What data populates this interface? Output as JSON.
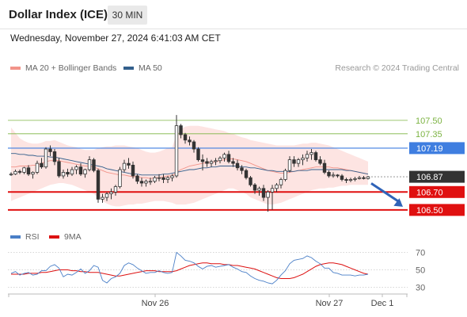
{
  "header": {
    "title": "Dollar Index (ICE)",
    "timeframe_label": "30 MIN"
  },
  "datetime": "Wednesday, November 27, 2024 6:41:03 AM CET",
  "legend": {
    "items": [
      {
        "label": "MA 20 + Bollinger Bands",
        "color": "#f2948a"
      },
      {
        "label": "MA 50",
        "color": "#335f8c"
      }
    ],
    "credit": "Research © 2024 Trading Central"
  },
  "rsi_legend": {
    "items": [
      {
        "label": "RSI",
        "color": "#4a7fc7"
      },
      {
        "label": "9MA",
        "color": "#dd1111"
      }
    ]
  },
  "colors": {
    "pivot": "#3f7ee0",
    "support": "#e01010",
    "resistance": "#7cb342",
    "bollinger_fill": "#fde4e2",
    "candles": "#333333",
    "last_price_bg": "#333333"
  },
  "chart_data": [
    {
      "type": "candlestick",
      "ylim": [
        106.34,
        107.72
      ],
      "x_ticks": [
        "Nov 26",
        "Nov 27",
        "Dec 1"
      ],
      "levels": [
        {
          "value": 107.5,
          "label": "107.50",
          "kind": "resistance"
        },
        {
          "value": 107.35,
          "label": "107.35",
          "kind": "resistance"
        },
        {
          "value": 107.19,
          "label": "107.19",
          "kind": "pivot"
        },
        {
          "value": 106.87,
          "label": "106.87",
          "kind": "last"
        },
        {
          "value": 106.7,
          "label": "106.70",
          "kind": "support"
        },
        {
          "value": 106.5,
          "label": "106.50",
          "kind": "support"
        }
      ],
      "forecast": {
        "from": 106.85,
        "to": 106.5,
        "direction": "down"
      },
      "candles": [
        [
          106.9,
          106.92,
          106.88,
          106.9
        ],
        [
          106.9,
          106.95,
          106.89,
          106.93
        ],
        [
          106.93,
          106.95,
          106.9,
          106.92
        ],
        [
          106.92,
          106.98,
          106.9,
          106.97
        ],
        [
          106.97,
          107.0,
          106.88,
          106.9
        ],
        [
          106.9,
          106.93,
          106.85,
          106.92
        ],
        [
          106.92,
          107.05,
          106.9,
          107.02
        ],
        [
          107.02,
          107.08,
          106.96,
          106.98
        ],
        [
          106.98,
          107.2,
          106.96,
          107.18
        ],
        [
          107.18,
          107.22,
          107.1,
          107.15
        ],
        [
          107.15,
          107.18,
          107.0,
          107.04
        ],
        [
          107.04,
          107.08,
          106.86,
          106.88
        ],
        [
          106.88,
          106.95,
          106.85,
          106.92
        ],
        [
          106.92,
          106.96,
          106.87,
          106.9
        ],
        [
          106.9,
          106.98,
          106.88,
          106.95
        ],
        [
          106.95,
          107.0,
          106.9,
          106.98
        ],
        [
          106.98,
          107.02,
          106.88,
          106.9
        ],
        [
          106.9,
          106.96,
          106.86,
          106.95
        ],
        [
          106.95,
          107.1,
          106.93,
          107.06
        ],
        [
          107.06,
          107.08,
          106.92,
          106.94
        ],
        [
          106.94,
          106.96,
          106.58,
          106.62
        ],
        [
          106.62,
          106.68,
          106.58,
          106.64
        ],
        [
          106.64,
          106.7,
          106.6,
          106.68
        ],
        [
          106.68,
          106.74,
          106.62,
          106.7
        ],
        [
          106.7,
          106.78,
          106.66,
          106.76
        ],
        [
          106.76,
          106.98,
          106.74,
          106.95
        ],
        [
          106.95,
          107.06,
          106.92,
          107.02
        ],
        [
          107.02,
          107.08,
          106.96,
          107.0
        ],
        [
          107.0,
          107.04,
          106.85,
          106.88
        ],
        [
          106.88,
          106.9,
          106.79,
          106.82
        ],
        [
          106.82,
          106.86,
          106.76,
          106.8
        ],
        [
          106.8,
          106.84,
          106.76,
          106.82
        ],
        [
          106.82,
          106.86,
          106.78,
          106.82
        ],
        [
          106.82,
          106.88,
          106.8,
          106.86
        ],
        [
          106.86,
          106.9,
          106.82,
          106.86
        ],
        [
          106.86,
          106.9,
          106.8,
          106.84
        ],
        [
          106.84,
          106.88,
          106.8,
          106.86
        ],
        [
          106.86,
          106.9,
          106.82,
          106.88
        ],
        [
          106.88,
          107.56,
          106.86,
          107.44
        ],
        [
          107.44,
          107.46,
          107.3,
          107.34
        ],
        [
          107.34,
          107.36,
          107.24,
          107.28
        ],
        [
          107.28,
          107.32,
          107.22,
          107.26
        ],
        [
          107.26,
          107.28,
          107.14,
          107.18
        ],
        [
          107.18,
          107.2,
          107.04,
          107.06
        ],
        [
          107.06,
          107.12,
          106.94,
          107.04
        ],
        [
          107.04,
          107.08,
          106.98,
          107.02
        ],
        [
          107.02,
          107.06,
          106.98,
          107.04
        ],
        [
          107.04,
          107.08,
          107.0,
          107.05
        ],
        [
          107.05,
          107.1,
          107.02,
          107.08
        ],
        [
          107.08,
          107.14,
          107.04,
          107.12
        ],
        [
          107.12,
          107.16,
          107.02,
          107.04
        ],
        [
          107.04,
          107.08,
          106.98,
          107.02
        ],
        [
          107.02,
          107.06,
          106.94,
          106.97
        ],
        [
          106.97,
          107.0,
          106.9,
          106.94
        ],
        [
          106.94,
          106.96,
          106.84,
          106.86
        ],
        [
          106.86,
          106.88,
          106.76,
          106.78
        ],
        [
          106.78,
          106.8,
          106.68,
          106.72
        ],
        [
          106.72,
          106.76,
          106.66,
          106.74
        ],
        [
          106.74,
          106.78,
          106.6,
          106.64
        ],
        [
          106.64,
          106.72,
          106.48,
          106.7
        ],
        [
          106.7,
          106.78,
          106.5,
          106.74
        ],
        [
          106.74,
          106.8,
          106.7,
          106.78
        ],
        [
          106.78,
          106.86,
          106.74,
          106.84
        ],
        [
          106.84,
          106.96,
          106.82,
          106.94
        ],
        [
          106.94,
          107.1,
          106.92,
          107.06
        ],
        [
          107.06,
          107.1,
          106.98,
          107.02
        ],
        [
          107.02,
          107.08,
          106.98,
          107.06
        ],
        [
          107.06,
          107.12,
          107.0,
          107.08
        ],
        [
          107.08,
          107.16,
          107.04,
          107.12
        ],
        [
          107.12,
          107.18,
          107.06,
          107.14
        ],
        [
          107.14,
          107.16,
          107.04,
          107.06
        ],
        [
          107.06,
          107.1,
          107.0,
          107.02
        ],
        [
          107.02,
          107.06,
          106.9,
          106.92
        ],
        [
          106.92,
          106.94,
          106.86,
          106.88
        ],
        [
          106.88,
          106.92,
          106.86,
          106.89
        ],
        [
          106.89,
          106.9,
          106.86,
          106.88
        ],
        [
          106.88,
          106.9,
          106.82,
          106.84
        ],
        [
          106.84,
          106.86,
          106.8,
          106.83
        ],
        [
          106.83,
          106.86,
          106.81,
          106.84
        ],
        [
          106.84,
          106.87,
          106.82,
          106.85
        ],
        [
          106.85,
          106.88,
          106.84,
          106.86
        ],
        [
          106.86,
          106.88,
          106.84,
          106.85
        ],
        [
          106.85,
          106.88,
          106.84,
          106.87
        ]
      ],
      "ma20": [
        106.98,
        106.98,
        106.99,
        106.99,
        106.99,
        107.0,
        107.0,
        107.02,
        107.04,
        107.05,
        107.05,
        107.05,
        107.04,
        107.03,
        107.02,
        107.01,
        107.0,
        106.99,
        106.99,
        106.98,
        106.96,
        106.94,
        106.92,
        106.91,
        106.9,
        106.89,
        106.89,
        106.88,
        106.87,
        106.87,
        106.86,
        106.86,
        106.85,
        106.86,
        106.86,
        106.87,
        106.88,
        106.88,
        106.92,
        106.95,
        106.97,
        106.99,
        107.0,
        107.01,
        107.02,
        107.03,
        107.03,
        107.04,
        107.05,
        107.06,
        107.07,
        107.07,
        107.06,
        107.05,
        107.04,
        107.02,
        107.0,
        106.98,
        106.96,
        106.94,
        106.93,
        106.92,
        106.91,
        106.91,
        106.92,
        106.93,
        106.94,
        106.95,
        106.96,
        106.97,
        106.98,
        106.98,
        106.98,
        106.98,
        106.97,
        106.97,
        106.96,
        106.95,
        106.94,
        106.93,
        106.92,
        106.91,
        106.9
      ],
      "ma50": [
        107.13,
        107.13,
        107.12,
        107.12,
        107.11,
        107.11,
        107.1,
        107.1,
        107.1,
        107.09,
        107.09,
        107.08,
        107.07,
        107.06,
        107.05,
        107.04,
        107.03,
        107.02,
        107.01,
        107.0,
        106.99,
        106.98,
        106.96,
        106.95,
        106.94,
        106.93,
        106.92,
        106.91,
        106.9,
        106.9,
        106.89,
        106.89,
        106.89,
        106.89,
        106.89,
        106.9,
        106.9,
        106.91,
        106.92,
        106.93,
        106.94,
        106.95,
        106.95,
        106.96,
        106.97,
        106.97,
        106.98,
        106.98,
        106.99,
        106.99,
        106.99,
        106.99,
        106.99,
        106.98,
        106.98,
        106.97,
        106.97,
        106.96,
        106.95,
        106.94,
        106.94,
        106.93,
        106.93,
        106.93,
        106.93,
        106.93,
        106.94,
        106.94,
        106.94,
        106.95,
        106.95,
        106.95,
        106.95,
        106.95,
        106.95,
        106.95,
        106.95,
        106.94,
        106.94,
        106.93,
        106.92,
        106.91,
        106.9
      ],
      "bb_upper": [
        107.42,
        107.36,
        107.3,
        107.27,
        107.25,
        107.24,
        107.24,
        107.25,
        107.27,
        107.27,
        107.28,
        107.26,
        107.24,
        107.22,
        107.21,
        107.2,
        107.18,
        107.17,
        107.17,
        107.17,
        107.19,
        107.2,
        107.21,
        107.21,
        107.22,
        107.22,
        107.22,
        107.21,
        107.2,
        107.19,
        107.17,
        107.15,
        107.14,
        107.14,
        107.15,
        107.17,
        107.19,
        107.2,
        107.34,
        107.4,
        107.43,
        107.44,
        107.44,
        107.44,
        107.43,
        107.42,
        107.41,
        107.4,
        107.39,
        107.38,
        107.36,
        107.35,
        107.33,
        107.31,
        107.3,
        107.28,
        107.27,
        107.26,
        107.25,
        107.24,
        107.23,
        107.22,
        107.22,
        107.22,
        107.22,
        107.22,
        107.23,
        107.24,
        107.24,
        107.25,
        107.25,
        107.24,
        107.23,
        107.22,
        107.2,
        107.18,
        107.16,
        107.14,
        107.12,
        107.1,
        107.08,
        107.06,
        107.04
      ],
      "bb_lower": [
        106.6,
        106.62,
        106.64,
        106.66,
        106.68,
        106.7,
        106.72,
        106.74,
        106.76,
        106.78,
        106.79,
        106.8,
        106.8,
        106.79,
        106.78,
        106.76,
        106.74,
        106.72,
        106.7,
        106.68,
        106.64,
        106.6,
        106.57,
        106.55,
        106.54,
        106.54,
        106.55,
        106.56,
        106.56,
        106.57,
        106.57,
        106.58,
        106.59,
        106.6,
        106.6,
        106.6,
        106.59,
        106.58,
        106.56,
        106.56,
        106.56,
        106.57,
        106.58,
        106.6,
        106.62,
        106.64,
        106.66,
        106.68,
        106.7,
        106.72,
        106.74,
        106.74,
        106.72,
        106.7,
        106.68,
        106.64,
        106.62,
        106.6,
        106.58,
        106.56,
        106.56,
        106.57,
        106.58,
        106.6,
        106.62,
        106.64,
        106.66,
        106.68,
        106.7,
        106.72,
        106.73,
        106.74,
        106.74,
        106.75,
        106.75,
        106.76,
        106.77,
        106.77,
        106.78,
        106.78,
        106.78,
        106.78,
        106.78
      ]
    },
    {
      "type": "line",
      "ylim": [
        25,
        75
      ],
      "y_ticks": [
        70,
        50,
        30
      ],
      "rsi": [
        46,
        48,
        44,
        46,
        47,
        44,
        45,
        49,
        49,
        54,
        56,
        52,
        42,
        45,
        44,
        47,
        51,
        46,
        49,
        55,
        53,
        38,
        35,
        40,
        42,
        46,
        55,
        58,
        56,
        52,
        49,
        46,
        47,
        47,
        49,
        47,
        46,
        47,
        70,
        66,
        61,
        60,
        58,
        54,
        51,
        54,
        55,
        53,
        54,
        55,
        56,
        53,
        51,
        48,
        47,
        43,
        40,
        38,
        37,
        35,
        34,
        38,
        44,
        49,
        57,
        61,
        62,
        63,
        66,
        64,
        60,
        57,
        52,
        52,
        47,
        46,
        44,
        44,
        44,
        43,
        44,
        44,
        45
      ],
      "ma9": [
        45,
        45,
        45,
        45,
        46,
        46,
        46,
        47,
        47,
        48,
        49,
        50,
        50,
        50,
        49,
        49,
        48,
        48,
        47,
        47,
        47,
        46,
        45,
        44,
        43,
        43,
        44,
        45,
        46,
        47,
        48,
        49,
        49,
        49,
        48,
        48,
        48,
        48,
        49,
        51,
        53,
        55,
        56,
        57,
        58,
        58,
        57,
        57,
        57,
        56,
        56,
        55,
        55,
        54,
        53,
        52,
        51,
        49,
        47,
        45,
        43,
        41,
        40,
        40,
        40,
        41,
        43,
        45,
        48,
        51,
        54,
        56,
        57,
        58,
        58,
        57,
        56,
        54,
        52,
        50,
        48,
        46,
        45
      ]
    }
  ]
}
